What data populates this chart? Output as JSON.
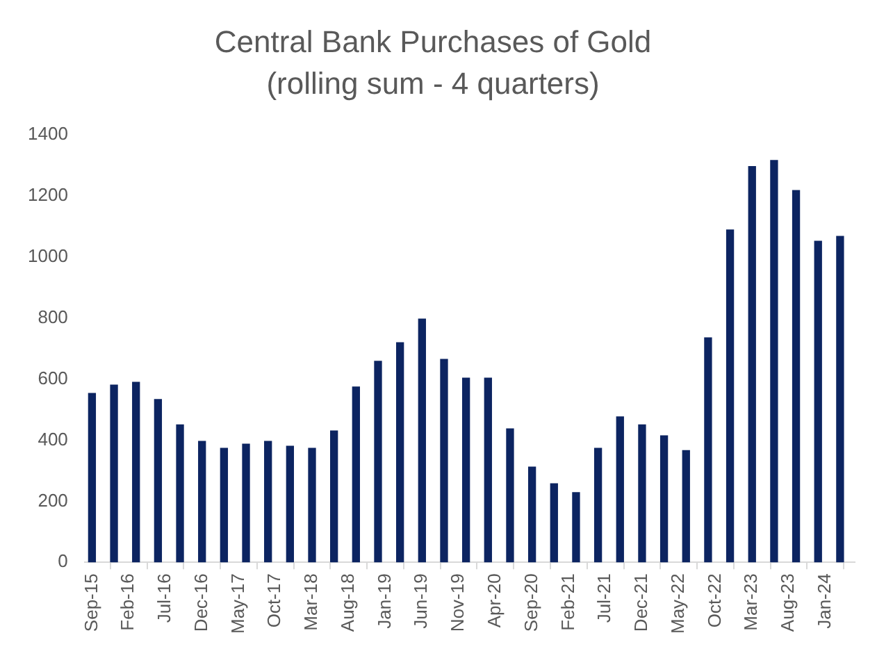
{
  "chart_data": {
    "type": "bar",
    "title": "Central Bank Purchases of Gold",
    "subtitle": "(rolling sum - 4 quarters)",
    "x": [
      "2015-09",
      "2015-12",
      "2016-03",
      "2016-06",
      "2016-09",
      "2016-12",
      "2017-03",
      "2017-06",
      "2017-09",
      "2017-12",
      "2018-03",
      "2018-06",
      "2018-09",
      "2018-12",
      "2019-03",
      "2019-06",
      "2019-09",
      "2019-12",
      "2020-03",
      "2020-06",
      "2020-09",
      "2020-12",
      "2021-03",
      "2021-06",
      "2021-09",
      "2021-12",
      "2022-03",
      "2022-06",
      "2022-09",
      "2022-12",
      "2023-03",
      "2023-06",
      "2023-09",
      "2023-12",
      "2024-03"
    ],
    "values": [
      553,
      580,
      589,
      533,
      450,
      396,
      373,
      387,
      396,
      380,
      373,
      430,
      574,
      658,
      719,
      796,
      664,
      603,
      603,
      437,
      312,
      257,
      228,
      373,
      476,
      450,
      414,
      366,
      735,
      1088,
      1295,
      1315,
      1217,
      1051,
      1067
    ],
    "color": "#0c2461",
    "xlim": [
      "2015-08",
      "2024-05"
    ],
    "xticks": [
      {
        "value": "2015-09",
        "label": "Sep-15"
      },
      {
        "value": "2016-02",
        "label": "Feb-16"
      },
      {
        "value": "2016-07",
        "label": "Jul-16"
      },
      {
        "value": "2016-12",
        "label": "Dec-16"
      },
      {
        "value": "2017-05",
        "label": "May-17"
      },
      {
        "value": "2017-10",
        "label": "Oct-17"
      },
      {
        "value": "2018-03",
        "label": "Mar-18"
      },
      {
        "value": "2018-08",
        "label": "Aug-18"
      },
      {
        "value": "2019-01",
        "label": "Jan-19"
      },
      {
        "value": "2019-06",
        "label": "Jun-19"
      },
      {
        "value": "2019-11",
        "label": "Nov-19"
      },
      {
        "value": "2020-04",
        "label": "Apr-20"
      },
      {
        "value": "2020-09",
        "label": "Sep-20"
      },
      {
        "value": "2021-02",
        "label": "Feb-21"
      },
      {
        "value": "2021-07",
        "label": "Jul-21"
      },
      {
        "value": "2021-12",
        "label": "Dec-21"
      },
      {
        "value": "2022-05",
        "label": "May-22"
      },
      {
        "value": "2022-10",
        "label": "Oct-22"
      },
      {
        "value": "2023-03",
        "label": "Mar-23"
      },
      {
        "value": "2023-08",
        "label": "Aug-23"
      },
      {
        "value": "2024-01",
        "label": "Jan-24"
      }
    ],
    "ylim": [
      0,
      1400
    ],
    "yticks": [
      0,
      200,
      400,
      600,
      800,
      1000,
      1200,
      1400
    ]
  }
}
